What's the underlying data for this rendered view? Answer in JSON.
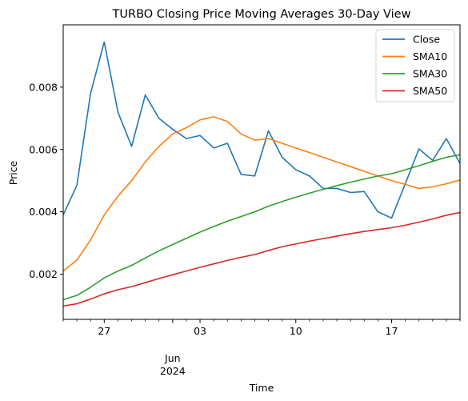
{
  "chart_data": {
    "type": "line",
    "title": "TURBO Closing Price Moving Averages 30-Day View",
    "xlabel": "Time",
    "ylabel": "Price",
    "xlim": [
      "2024-05-24",
      "2024-06-22"
    ],
    "ylim": [
      0.00055,
      0.01
    ],
    "y_ticks": [
      {
        "value": 0.002,
        "label": "0.002"
      },
      {
        "value": 0.004,
        "label": "0.004"
      },
      {
        "value": 0.006,
        "label": "0.006"
      },
      {
        "value": 0.008,
        "label": "0.008"
      }
    ],
    "x_major_ticks": [
      {
        "date": "2024-05-27",
        "label": "27"
      },
      {
        "date": "2024-06-01",
        "label": "Jun",
        "label2": "2024"
      },
      {
        "date": "2024-06-03",
        "label": "03"
      },
      {
        "date": "2024-06-10",
        "label": "10"
      },
      {
        "date": "2024-06-17",
        "label": "17"
      }
    ],
    "x_minor_ticks": [
      "2024-05-24",
      "2024-05-25",
      "2024-05-26",
      "2024-05-28",
      "2024-05-29",
      "2024-05-30",
      "2024-05-31",
      "2024-06-02",
      "2024-06-04",
      "2024-06-05",
      "2024-06-06",
      "2024-06-07",
      "2024-06-08",
      "2024-06-09",
      "2024-06-11",
      "2024-06-12",
      "2024-06-13",
      "2024-06-14",
      "2024-06-15",
      "2024-06-16",
      "2024-06-18",
      "2024-06-19",
      "2024-06-20",
      "2024-06-21",
      "2024-06-22"
    ],
    "x": [
      "2024-05-24",
      "2024-05-25",
      "2024-05-26",
      "2024-05-27",
      "2024-05-28",
      "2024-05-29",
      "2024-05-30",
      "2024-05-31",
      "2024-06-01",
      "2024-06-02",
      "2024-06-03",
      "2024-06-04",
      "2024-06-05",
      "2024-06-06",
      "2024-06-07",
      "2024-06-08",
      "2024-06-09",
      "2024-06-10",
      "2024-06-11",
      "2024-06-12",
      "2024-06-13",
      "2024-06-14",
      "2024-06-15",
      "2024-06-16",
      "2024-06-17",
      "2024-06-18",
      "2024-06-19",
      "2024-06-20",
      "2024-06-21",
      "2024-06-22"
    ],
    "series": [
      {
        "name": "Close",
        "color": "#1f77b4",
        "values": [
          0.0039,
          0.00485,
          0.0078,
          0.00945,
          0.0072,
          0.0061,
          0.00775,
          0.007,
          0.00665,
          0.00635,
          0.00645,
          0.00605,
          0.0062,
          0.0052,
          0.00515,
          0.0066,
          0.00575,
          0.00535,
          0.00515,
          0.00475,
          0.00475,
          0.00462,
          0.00465,
          0.004,
          0.0038,
          0.0049,
          0.00602,
          0.00565,
          0.00635,
          0.00555
        ]
      },
      {
        "name": "SMA10",
        "color": "#ff7f0e",
        "values": [
          0.0021,
          0.00245,
          0.0031,
          0.0039,
          0.0045,
          0.005,
          0.0056,
          0.0061,
          0.0065,
          0.0067,
          0.00695,
          0.00705,
          0.0069,
          0.0065,
          0.0063,
          0.00635,
          0.0062,
          0.00605,
          0.0059,
          0.00575,
          0.0056,
          0.00545,
          0.0053,
          0.00515,
          0.005,
          0.00488,
          0.00475,
          0.0048,
          0.0049,
          0.00502
        ]
      },
      {
        "name": "SMA30",
        "color": "#2ca02c",
        "values": [
          0.00118,
          0.00132,
          0.00158,
          0.00188,
          0.0021,
          0.00228,
          0.00252,
          0.00275,
          0.00295,
          0.00315,
          0.00335,
          0.00353,
          0.0037,
          0.00385,
          0.004,
          0.00418,
          0.00433,
          0.00447,
          0.0046,
          0.00472,
          0.00484,
          0.00495,
          0.00505,
          0.00515,
          0.00522,
          0.00535,
          0.00548,
          0.00562,
          0.00575,
          0.00583
        ]
      },
      {
        "name": "SMA50",
        "color": "#d62728",
        "values": [
          0.00098,
          0.00105,
          0.0012,
          0.00137,
          0.0015,
          0.0016,
          0.00173,
          0.00186,
          0.00198,
          0.0021,
          0.00222,
          0.00233,
          0.00244,
          0.00254,
          0.00263,
          0.00276,
          0.00288,
          0.00297,
          0.00306,
          0.00314,
          0.00322,
          0.0033,
          0.00337,
          0.00343,
          0.00349,
          0.00357,
          0.00367,
          0.00377,
          0.00389,
          0.00398
        ]
      }
    ],
    "legend": "top-right",
    "grid": false
  }
}
